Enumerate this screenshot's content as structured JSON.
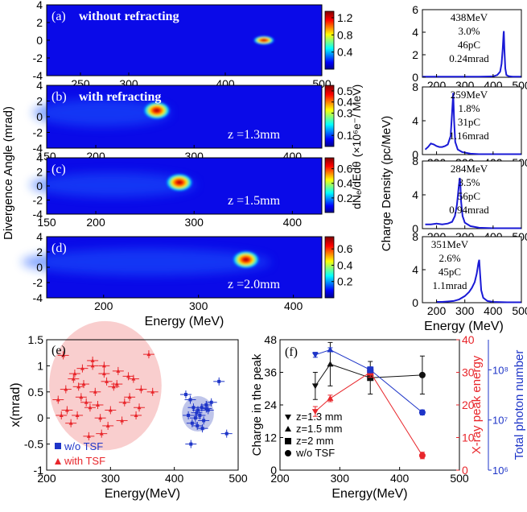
{
  "chart_data": [
    {
      "type": "heatmap",
      "panel": "(a)",
      "label": "without refracting",
      "xlim": [
        215,
        500
      ],
      "xticks": [
        250,
        300,
        400,
        500
      ],
      "ylim": [
        -4,
        4
      ],
      "yticks": [
        4,
        2,
        0,
        -2,
        -4
      ],
      "colorbar_ticks": [
        1.2,
        0.8,
        0.4
      ],
      "colorbar_range": [
        0,
        1.35
      ],
      "spots": [
        {
          "energy": 440,
          "angle": 0.0,
          "peak": 1.25
        }
      ]
    },
    {
      "type": "heatmap",
      "panel": "(b)",
      "label": "with refracting",
      "annotation": "z =1.3mm",
      "xlim": [
        150,
        430
      ],
      "xticks": [
        150,
        200,
        300,
        400
      ],
      "ylim": [
        -4,
        4
      ],
      "yticks": [
        4,
        2,
        0,
        -2,
        -4
      ],
      "colorbar_ticks": [
        0.5,
        0.4,
        0.3,
        0.1
      ],
      "colorbar_range": [
        0,
        0.55
      ],
      "colorbar_label": "(×10⁶e⁻/ MeV)",
      "spots": [
        {
          "energy": 262,
          "angle": 0.8,
          "peak": 0.55
        }
      ]
    },
    {
      "type": "heatmap",
      "panel": "(c)",
      "annotation": "z =1.5mm",
      "xlim": [
        150,
        430
      ],
      "xticks": [
        150,
        200,
        300,
        400
      ],
      "ylim": [
        -4,
        4
      ],
      "yticks": [
        4,
        2,
        0,
        -2,
        -4
      ],
      "colorbar_ticks": [
        0.6,
        0.4,
        0.2
      ],
      "colorbar_range": [
        0,
        0.75
      ],
      "colorbar_label": "dNₑ/dEdθ",
      "spots": [
        {
          "energy": 285,
          "angle": 0.5,
          "peak": 0.72
        }
      ]
    },
    {
      "type": "heatmap",
      "panel": "(d)",
      "annotation": "z =2.0mm",
      "xlim": [
        140,
        430
      ],
      "xticks": [
        200,
        300,
        400
      ],
      "xlabel": "Energy (MeV)",
      "ylim": [
        -4,
        4
      ],
      "yticks": [
        4,
        2,
        0,
        -2,
        -4
      ],
      "colorbar_ticks": [
        0.6,
        0.4,
        0.2
      ],
      "colorbar_range": [
        0,
        0.75
      ],
      "spots": [
        {
          "energy": 350,
          "angle": 1.0,
          "peak": 0.72
        }
      ]
    },
    {
      "type": "line",
      "ylim": [
        0,
        6
      ],
      "yticks": [
        0,
        2,
        4,
        6
      ],
      "xlim": [
        150,
        500
      ],
      "xticks": [
        200,
        300,
        400,
        500
      ],
      "text": [
        "438MeV",
        "3.0%",
        "46pC",
        "0.24mrad"
      ],
      "x": [
        150,
        200,
        250,
        300,
        350,
        400,
        415,
        425,
        430,
        434,
        437,
        438,
        440,
        443,
        447,
        455,
        470,
        500
      ],
      "y": [
        0.05,
        0.05,
        0.05,
        0.05,
        0.05,
        0.08,
        0.2,
        0.5,
        1.2,
        2.5,
        3.9,
        4.1,
        2.5,
        0.8,
        0.2,
        0.1,
        0.05,
        0.05
      ]
    },
    {
      "type": "line",
      "ylim": [
        0,
        8
      ],
      "yticks": [
        0,
        4,
        8
      ],
      "xlim": [
        150,
        500
      ],
      "xticks": [
        200,
        300,
        400,
        500
      ],
      "text": [
        "259MeV",
        "1.8%",
        "31pC",
        "1.16mrad"
      ],
      "x": [
        160,
        170,
        180,
        190,
        200,
        210,
        220,
        230,
        240,
        250,
        255,
        259,
        262,
        266,
        275,
        290,
        320,
        350,
        400,
        450,
        500
      ],
      "y": [
        0.6,
        0.9,
        1.3,
        1.2,
        1.0,
        0.9,
        0.9,
        1.0,
        1.2,
        2.2,
        5.0,
        7.3,
        4.0,
        1.5,
        0.6,
        0.3,
        0.1,
        0.05,
        0.05,
        0.05,
        0.05
      ]
    },
    {
      "type": "line",
      "ylim": [
        0,
        8
      ],
      "yticks": [
        0,
        4,
        8
      ],
      "xlim": [
        150,
        500
      ],
      "xticks": [
        200,
        300,
        400,
        500
      ],
      "text": [
        "284MeV",
        "3.5%",
        "56pC",
        "0.94mrad"
      ],
      "x": [
        160,
        180,
        200,
        220,
        240,
        255,
        265,
        272,
        278,
        282,
        284,
        287,
        292,
        300,
        320,
        350,
        400,
        450,
        500
      ],
      "y": [
        0.5,
        0.5,
        0.6,
        0.5,
        0.6,
        0.8,
        1.5,
        2.8,
        4.8,
        6.0,
        5.5,
        3.2,
        1.5,
        0.7,
        0.3,
        0.1,
        0.05,
        0.05,
        0.05
      ]
    },
    {
      "type": "line",
      "ylim": [
        0,
        8
      ],
      "yticks": [
        0,
        4,
        8
      ],
      "xlim": [
        150,
        500
      ],
      "xticks": [
        200,
        300,
        400,
        500
      ],
      "xlabel": "Energy (MeV)",
      "text": [
        "351MeV",
        "2.6%",
        "45pC",
        "1.1mrad"
      ],
      "x": [
        200,
        220,
        240,
        260,
        280,
        300,
        315,
        325,
        335,
        342,
        348,
        351,
        354,
        358,
        365,
        380,
        400,
        450,
        500
      ],
      "y": [
        0.1,
        0.1,
        0.15,
        0.2,
        0.4,
        0.8,
        1.3,
        1.8,
        2.5,
        3.5,
        4.8,
        5.2,
        3.5,
        1.5,
        0.6,
        0.2,
        0.1,
        0.05,
        0.05
      ]
    },
    {
      "type": "scatter",
      "panel": "(e)",
      "xlabel": "Energy(MeV)",
      "ylabel": "x(mrad)",
      "xlim": [
        200,
        500
      ],
      "xticks": [
        200,
        300,
        400,
        500
      ],
      "ylim": [
        -1,
        1.5
      ],
      "yticks": [
        -1,
        -0.5,
        0,
        0.5,
        1,
        1.5
      ],
      "colors": {
        "with": "#e8262b",
        "without": "#1e35c8"
      },
      "series": [
        {
          "name": "with TSF",
          "marker": "triangle",
          "x": [
            218,
            230,
            242,
            256,
            272,
            290,
            310,
            330,
            345,
            360,
            232,
            248,
            262,
            276,
            294,
            312,
            328,
            348,
            366,
            223,
            238,
            254,
            268,
            284,
            300,
            322,
            340,
            244,
            258,
            280,
            296,
            318,
            336,
            266,
            286,
            305,
            272,
            290,
            226,
            250
          ],
          "y": [
            0.35,
            0.55,
            0.75,
            0.95,
            1.0,
            0.85,
            0.65,
            0.4,
            0.2,
            1.22,
            0.15,
            0.05,
            0.3,
            0.5,
            0.7,
            0.9,
            0.8,
            0.55,
            0.5,
            0.05,
            -0.1,
            0.4,
            0.2,
            0.0,
            0.15,
            0.3,
            0.05,
            0.85,
            0.65,
            0.25,
            -0.15,
            -0.05,
            0.75,
            -0.35,
            -0.3,
            0.6,
            1.1,
            1.0,
            1.2,
            0.6
          ]
        },
        {
          "name": "w/o TSF",
          "marker": "square",
          "x": [
            418,
            425,
            430,
            437,
            443,
            450,
            422,
            433,
            440,
            446,
            453,
            428,
            436,
            444,
            458,
            470,
            482,
            426,
            435,
            450
          ],
          "y": [
            0.45,
            0.35,
            0.2,
            0.15,
            0.2,
            0.18,
            0.05,
            0.0,
            0.05,
            -0.05,
            0.15,
            -0.1,
            -0.15,
            -0.2,
            0.3,
            0.7,
            -0.3,
            -0.5,
            0.1,
            0.25
          ]
        }
      ]
    },
    {
      "type": "line",
      "panel": "(f)",
      "xlabel": "Energy(MeV)",
      "ylabel": "Charge in the peak",
      "ylabel_right": "X-ray peak energy",
      "ylabel_right2": "Total photon number",
      "xlim": [
        200,
        500
      ],
      "xticks": [
        200,
        300,
        400,
        500
      ],
      "ylim": [
        0,
        48
      ],
      "yticks": [
        0,
        12,
        24,
        36,
        48
      ],
      "y2lim": [
        0,
        40
      ],
      "y2ticks": [
        0,
        10,
        20,
        30,
        40
      ],
      "y3ticks": [
        "10⁶",
        "10⁷",
        "10⁸"
      ],
      "colors": {
        "charge": "#111111",
        "xray": "#e8262b",
        "photon": "#1e35c8"
      },
      "legend": [
        "z=1.3 mm",
        "z=1.5 mm",
        "z=2 mm",
        "w/o TSF"
      ],
      "series": [
        {
          "name": "Charge in the peak",
          "x": [
            259,
            284,
            351,
            438
          ],
          "y": [
            31,
            39,
            34,
            35
          ],
          "yerr": [
            5,
            8,
            6,
            7
          ]
        },
        {
          "name": "X-ray peak energy",
          "x": [
            259,
            284,
            351,
            438
          ],
          "y": [
            18,
            22,
            30,
            4.5
          ],
          "yerr": [
            1.5,
            1,
            1.5,
            1
          ]
        },
        {
          "name": "Total photon number",
          "x": [
            259,
            284,
            351,
            438
          ],
          "log10": [
            8.3,
            8.4,
            8.0,
            7.15
          ],
          "yerr_log": [
            0.05,
            0.04,
            0.06,
            0.05
          ]
        }
      ]
    }
  ],
  "labels": {
    "left_ylabel": "Divergence Angle (mrad)",
    "spectra_ylabel": "Charge Density (pc/MeV)"
  }
}
